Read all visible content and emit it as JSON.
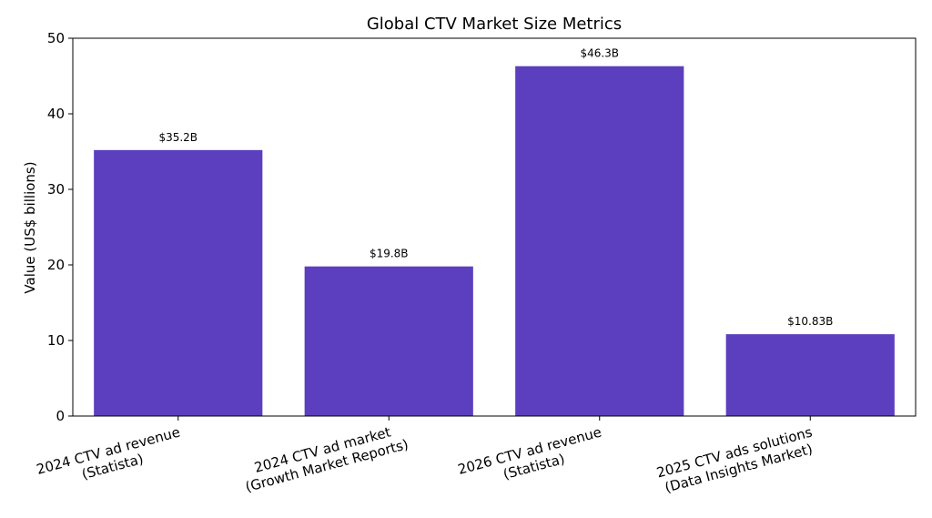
{
  "chart_data": {
    "type": "bar",
    "title": "Global CTV Market Size Metrics",
    "xlabel": "",
    "ylabel": "Value (US$ billions)",
    "ylim": [
      0,
      50
    ],
    "yticks": [
      0,
      10,
      20,
      30,
      40,
      50
    ],
    "grid": false,
    "bar_color": "#5b3fbe",
    "categories": [
      [
        "2024 CTV ad revenue",
        "(Statista)"
      ],
      [
        "2024 CTV ad market",
        "(Growth Market Reports)"
      ],
      [
        "2026 CTV ad revenue",
        "(Statista)"
      ],
      [
        "2025 CTV ads solutions",
        "(Data Insights Market)"
      ]
    ],
    "values": [
      35.2,
      19.8,
      46.3,
      10.83
    ],
    "data_labels": [
      "$35.2B",
      "$19.8B",
      "$46.3B",
      "$10.83B"
    ]
  }
}
